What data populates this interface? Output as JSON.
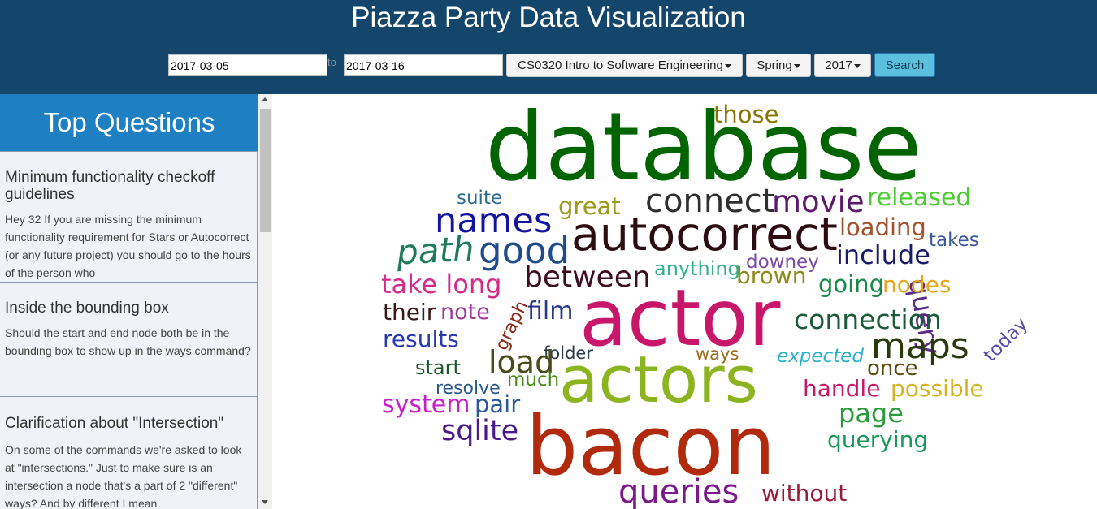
{
  "header": {
    "title": "Piazza Party Data Visualization",
    "start_date": "2017-03-05",
    "to_label": "to",
    "end_date": "2017-03-16",
    "course": "CS0320 Intro to Software Engineering",
    "season": "Spring",
    "year": "2017",
    "search_label": "Search"
  },
  "sidebar": {
    "title": "Top Questions",
    "questions": [
      {
        "title": "Minimum functionality checkoff guidelines",
        "body": "Hey 32   If you are missing the minimum functionality requirement for Stars or Autocorrect (or any future project) you should go to the hours of the person who"
      },
      {
        "title": "Inside the bounding box",
        "body": "Should the start and end node both be in the bounding box to show up in the ways command?"
      },
      {
        "title": "Clarification about \"Intersection\"",
        "body": "On some of the commands we're asked to look at \"intersections.\" Just to make sure is an intersection a node that's a part of 2 \"different\" ways? And by different I mean"
      }
    ]
  },
  "word_cloud": {
    "words": [
      {
        "text": "database",
        "color": "#006400"
      },
      {
        "text": "those",
        "color": "#8b7500"
      },
      {
        "text": "suite",
        "color": "#2e6b8e"
      },
      {
        "text": "great",
        "color": "#9a9a1a"
      },
      {
        "text": "connect",
        "color": "#2f2f2f"
      },
      {
        "text": "movie",
        "color": "#5c1a6b"
      },
      {
        "text": "released",
        "color": "#4ccc33"
      },
      {
        "text": "names",
        "color": "#1414a0"
      },
      {
        "text": "autocorrect",
        "color": "#2e0d12"
      },
      {
        "text": "loading",
        "color": "#a0522d"
      },
      {
        "text": "path",
        "color": "#1e7a5a"
      },
      {
        "text": "good",
        "color": "#1f4d8c"
      },
      {
        "text": "takes",
        "color": "#3a5a9a"
      },
      {
        "text": "downey",
        "color": "#7a4aa0"
      },
      {
        "text": "include",
        "color": "#1a1a6b"
      },
      {
        "text": "anything",
        "color": "#33b08a"
      },
      {
        "text": "query",
        "color": "#5c2a8a"
      },
      {
        "text": "take long",
        "color": "#d62a8a"
      },
      {
        "text": "between",
        "color": "#3d0d20"
      },
      {
        "text": "brown",
        "color": "#8a8a14"
      },
      {
        "text": "going",
        "color": "#1a8a4a"
      },
      {
        "text": "nodes",
        "color": "#e6a81a"
      },
      {
        "text": "their",
        "color": "#3d1a1a"
      },
      {
        "text": "note",
        "color": "#a03a9a"
      },
      {
        "text": "graph",
        "color": "#8a2a1a"
      },
      {
        "text": "film",
        "color": "#2a3a8a"
      },
      {
        "text": "actor",
        "color": "#c8176b"
      },
      {
        "text": "connection",
        "color": "#1a5a3a"
      },
      {
        "text": "today",
        "color": "#5a4ab0"
      },
      {
        "text": "results",
        "color": "#2a3ab0"
      },
      {
        "text": "maps",
        "color": "#2a3a0d"
      },
      {
        "text": "folder",
        "color": "#2a3a4a"
      },
      {
        "text": "ways",
        "color": "#9a6a1a"
      },
      {
        "text": "expected",
        "color": "#2ab0c8"
      },
      {
        "text": "start",
        "color": "#1a5a2a"
      },
      {
        "text": "load",
        "color": "#4a4a1a"
      },
      {
        "text": "actors",
        "color": "#8cb41e"
      },
      {
        "text": "once",
        "color": "#5a4a0d"
      },
      {
        "text": "resolve",
        "color": "#2a5a8a"
      },
      {
        "text": "much",
        "color": "#4a8a1a"
      },
      {
        "text": "handle",
        "color": "#c8176b"
      },
      {
        "text": "possible",
        "color": "#d4b41e"
      },
      {
        "text": "system",
        "color": "#c81ec8"
      },
      {
        "text": "pair",
        "color": "#2a5a9a"
      },
      {
        "text": "page",
        "color": "#2a9a3a"
      },
      {
        "text": "sqlite",
        "color": "#4a1a8a"
      },
      {
        "text": "bacon",
        "color": "#b22a0d"
      },
      {
        "text": "querying",
        "color": "#1a9a5a"
      },
      {
        "text": "queries",
        "color": "#7a1a8a"
      },
      {
        "text": "without",
        "color": "#9a1a3a"
      }
    ]
  }
}
